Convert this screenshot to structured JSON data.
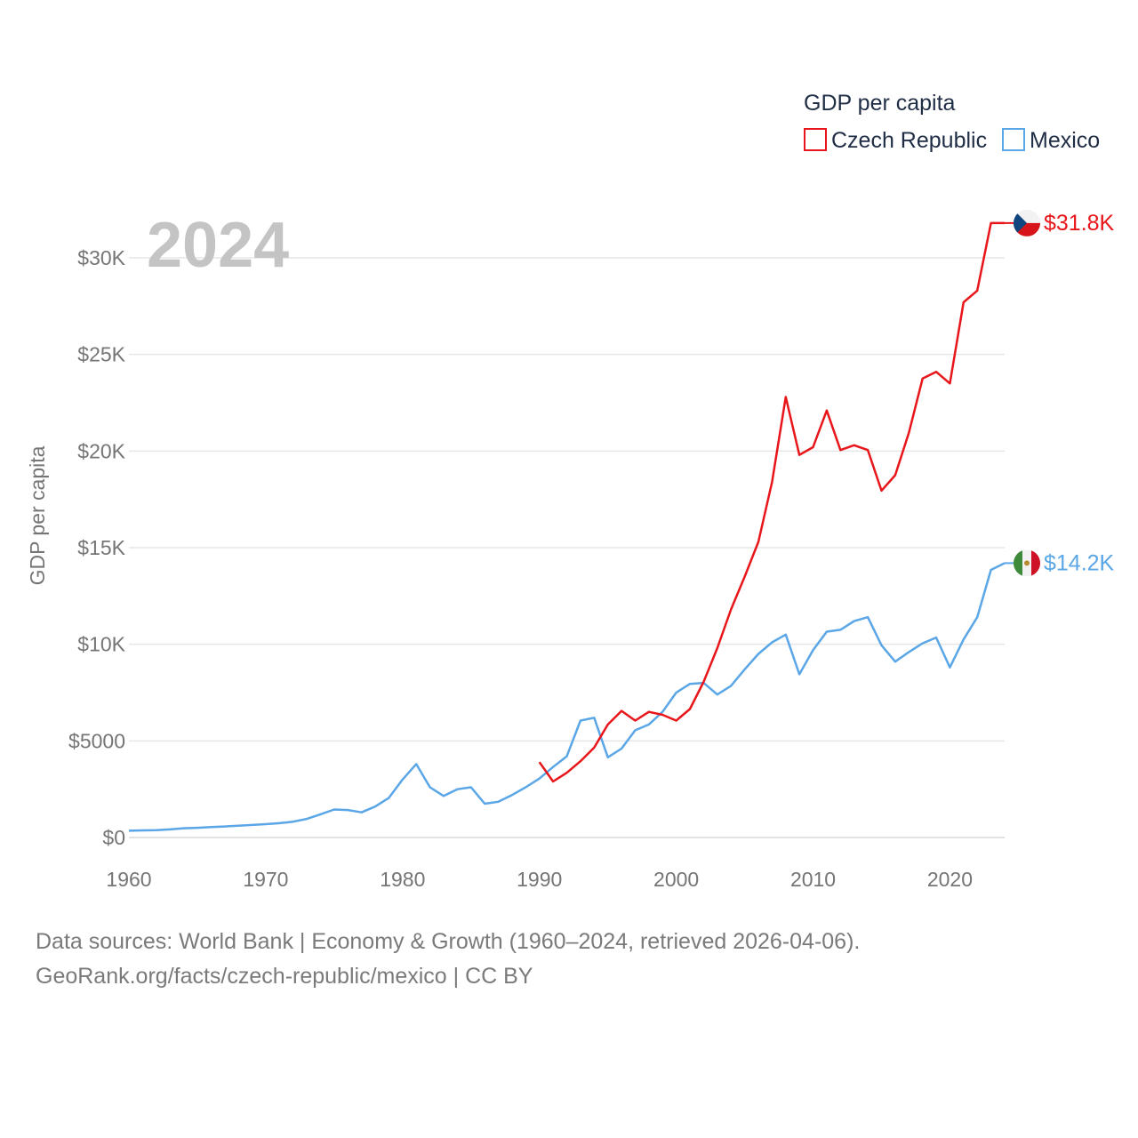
{
  "chart_data": {
    "type": "line",
    "year_label": "2024",
    "ylabel": "GDP per capita",
    "xlim": [
      1960,
      2024
    ],
    "ylim": [
      0,
      32000
    ],
    "x_ticks": [
      "1960",
      "1970",
      "1980",
      "1990",
      "2000",
      "2010",
      "2020"
    ],
    "y_ticks": [
      {
        "value": 0,
        "label": "$0"
      },
      {
        "value": 5000,
        "label": "$5000"
      },
      {
        "value": 10000,
        "label": "$10K"
      },
      {
        "value": 15000,
        "label": "$15K"
      },
      {
        "value": 20000,
        "label": "$20K"
      },
      {
        "value": 25000,
        "label": "$25K"
      },
      {
        "value": 30000,
        "label": "$30K"
      }
    ],
    "legend": {
      "title": "GDP per capita",
      "position": "top-right"
    },
    "series": [
      {
        "name": "Czech Republic",
        "color": "#e8161a",
        "end_label": "$31.8K",
        "flag_icon": "czech-flag-icon",
        "x": [
          1990,
          1991,
          1992,
          1993,
          1994,
          1995,
          1996,
          1997,
          1998,
          1999,
          2000,
          2001,
          2002,
          2003,
          2004,
          2005,
          2006,
          2007,
          2008,
          2009,
          2010,
          2011,
          2012,
          2013,
          2014,
          2015,
          2016,
          2017,
          2018,
          2019,
          2020,
          2021,
          2022,
          2023,
          2024
        ],
        "values": [
          3900,
          2900,
          3350,
          3950,
          4650,
          5850,
          6550,
          6050,
          6500,
          6350,
          6050,
          6650,
          8050,
          9800,
          11800,
          13500,
          15300,
          18400,
          22800,
          19800,
          20200,
          22100,
          20050,
          20300,
          20050,
          17950,
          18750,
          20950,
          23750,
          24100,
          23500,
          27700,
          28300,
          31800,
          31800
        ]
      },
      {
        "name": "Mexico",
        "color": "#5aa6e6",
        "end_label": "$14.2K",
        "flag_icon": "mexico-flag-icon",
        "x": [
          1960,
          1961,
          1962,
          1963,
          1964,
          1965,
          1966,
          1967,
          1968,
          1969,
          1970,
          1971,
          1972,
          1973,
          1974,
          1975,
          1976,
          1977,
          1978,
          1979,
          1980,
          1981,
          1982,
          1983,
          1984,
          1985,
          1986,
          1987,
          1988,
          1989,
          1990,
          1991,
          1992,
          1993,
          1994,
          1995,
          1996,
          1997,
          1998,
          1999,
          2000,
          2001,
          2002,
          2003,
          2004,
          2005,
          2006,
          2007,
          2008,
          2009,
          2010,
          2011,
          2012,
          2013,
          2014,
          2015,
          2016,
          2017,
          2018,
          2019,
          2020,
          2021,
          2022,
          2023,
          2024
        ],
        "values": [
          350,
          370,
          380,
          420,
          480,
          500,
          540,
          570,
          610,
          650,
          690,
          740,
          820,
          960,
          1200,
          1450,
          1420,
          1300,
          1600,
          2050,
          3000,
          3800,
          2600,
          2150,
          2500,
          2600,
          1750,
          1850,
          2200,
          2600,
          3050,
          3650,
          4200,
          6050,
          6200,
          4150,
          4600,
          5550,
          5850,
          6500,
          7500,
          7950,
          8000,
          7400,
          7850,
          8700,
          9500,
          10100,
          10500,
          8450,
          9700,
          10650,
          10750,
          11200,
          11400,
          9950,
          9100,
          9600,
          10050,
          10350,
          8800,
          10250,
          11400,
          13850,
          14200
        ]
      }
    ]
  },
  "source": {
    "line1": "Data sources: World Bank | Economy & Growth (1960–2024, retrieved 2026-04-06).",
    "line2": "GeoRank.org/facts/czech-republic/mexico | CC BY"
  }
}
